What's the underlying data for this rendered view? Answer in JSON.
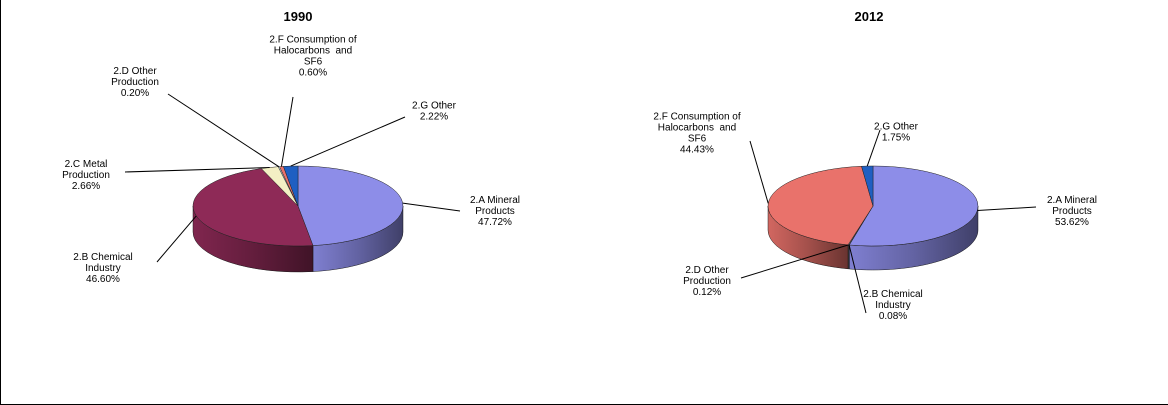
{
  "chart_data": [
    {
      "type": "pie",
      "title": "1990",
      "slices": [
        {
          "label": [
            "2.A Mineral",
            "Products",
            "47.72%"
          ],
          "value": 47.72,
          "color": "#8d8de8"
        },
        {
          "label": [
            "2.B Chemical",
            "Industry",
            "46.60%"
          ],
          "value": 46.6,
          "color": "#8e2a57"
        },
        {
          "label": [
            "2.C Metal",
            "Production",
            "2.66%"
          ],
          "value": 2.66,
          "color": "#f3efc4"
        },
        {
          "label": [
            "2.D Other",
            "Production",
            "0.20%"
          ],
          "value": 0.2,
          "color": "#c7dcec"
        },
        {
          "label": [
            "2.F Consumption of",
            "Halocarbons  and",
            "SF6",
            "0.60%"
          ],
          "value": 0.6,
          "color": "#e9726b"
        },
        {
          "label": [
            "2.G Other",
            "2.22%"
          ],
          "value": 2.22,
          "color": "#1f5fc2"
        }
      ]
    },
    {
      "type": "pie",
      "title": "2012",
      "slices": [
        {
          "label": [
            "2.A Mineral",
            "Products",
            "53.62%"
          ],
          "value": 53.62,
          "color": "#8d8de8"
        },
        {
          "label": [
            "2.B Chemical",
            "Industry",
            "0.08%"
          ],
          "value": 0.08,
          "color": "#8e2a57"
        },
        {
          "label": [
            "2.D Other",
            "Production",
            "0.12%"
          ],
          "value": 0.12,
          "color": "#c7dcec"
        },
        {
          "label": [
            "2.F Consumption of",
            "Halocarbons  and",
            "SF6",
            "44.43%"
          ],
          "value": 44.43,
          "color": "#e9726b"
        },
        {
          "label": [
            "2.G Other",
            "1.75%"
          ],
          "value": 1.75,
          "color": "#1f5fc2"
        }
      ]
    }
  ]
}
